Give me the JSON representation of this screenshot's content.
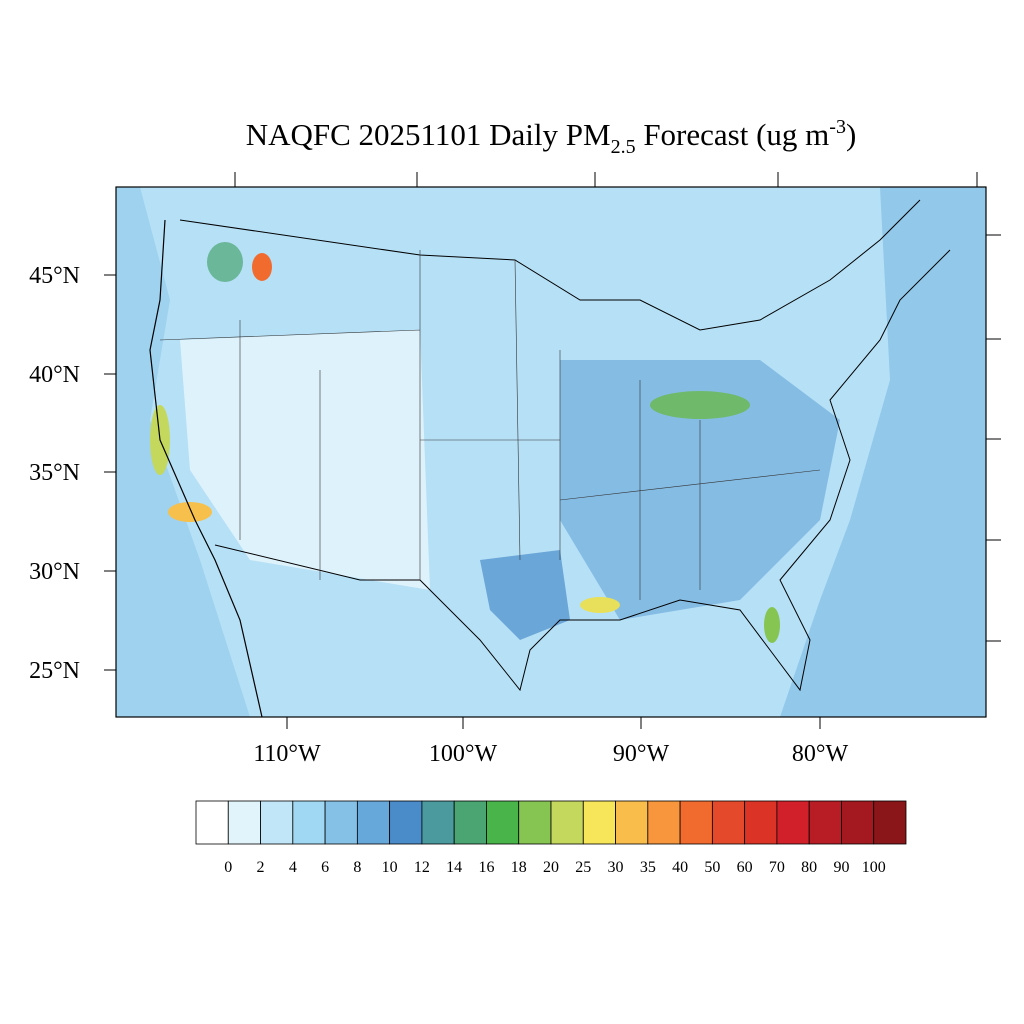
{
  "title": {
    "text": "NAQFC 20251101 Daily PM",
    "subscript": "2.5",
    "middle": " Forecast (ug m",
    "superscript": "-3",
    "end": ")"
  },
  "lat_labels": [
    "45°N",
    "40°N",
    "35°N",
    "30°N",
    "25°N"
  ],
  "lon_labels": [
    "110°W",
    "100°W",
    "90°W",
    "80°W"
  ],
  "colorbar": {
    "colors": [
      "#ffffff",
      "#e1f3fb",
      "#c0e6f8",
      "#a0d7f3",
      "#85c0e6",
      "#67a8da",
      "#4a8cca",
      "#4a9a9e",
      "#4aa572",
      "#49b449",
      "#86c552",
      "#c4d85e",
      "#f7e65a",
      "#f9bd4c",
      "#f7963c",
      "#f26b2e",
      "#e5492b",
      "#dc3327",
      "#d2202a",
      "#b81c24",
      "#a3191f",
      "#8b1619"
    ],
    "labels": [
      0,
      2,
      4,
      6,
      8,
      10,
      12,
      14,
      16,
      18,
      20,
      25,
      30,
      35,
      40,
      50,
      60,
      70,
      80,
      90,
      100
    ]
  }
}
